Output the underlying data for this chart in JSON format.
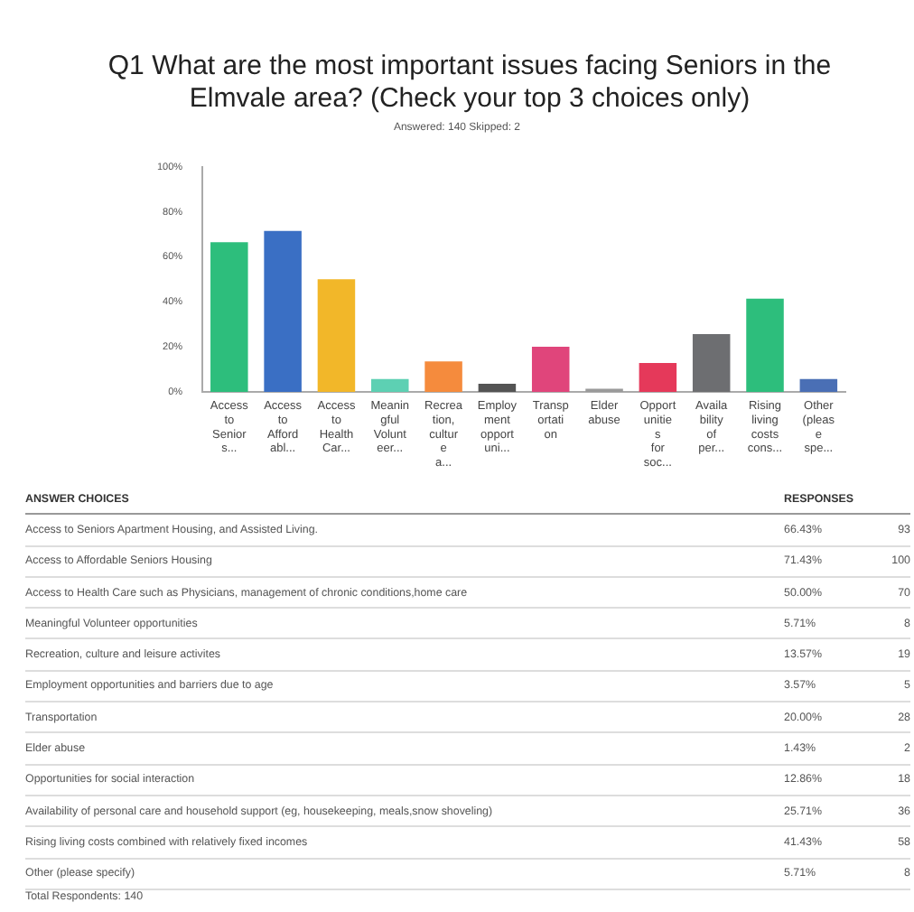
{
  "chart_data": {
    "type": "bar",
    "title": "Q1 What are the most important issues facing Seniors in the Elmvale area? (Check your top 3 choices only)",
    "subtitle": "Answered: 140    Skipped: 2",
    "categories": [
      "Access to Senior s...",
      "Access to Afford abl...",
      "Access to Health Car...",
      "Meanin gful Volunt eer...",
      "Recrea tion, cultur e a...",
      "Employ ment opport uni...",
      "Transp ortati on",
      "Elder abuse",
      "Opport unitie s for soc...",
      "Availa bility of per...",
      "Rising living costs cons...",
      "Other (pleas e spe..."
    ],
    "values": [
      66.43,
      71.43,
      50.0,
      5.71,
      13.57,
      3.57,
      20.0,
      1.43,
      12.86,
      25.71,
      41.43,
      5.71
    ],
    "colors": [
      "#2dbe7c",
      "#3a6fc4",
      "#f2b729",
      "#5dd0b3",
      "#f58b3d",
      "#545454",
      "#e0457b",
      "#9a9a9a",
      "#e5395a",
      "#6d6e71",
      "#2dbe7c",
      "#4a6fb5"
    ],
    "ylim": [
      0,
      100
    ],
    "yticks": [
      {
        "value": 0,
        "label": "0%"
      },
      {
        "value": 20,
        "label": "20%"
      },
      {
        "value": 40,
        "label": "40%"
      },
      {
        "value": 60,
        "label": "60%"
      },
      {
        "value": 80,
        "label": "80%"
      },
      {
        "value": 100,
        "label": "100%"
      }
    ],
    "grid": false,
    "annotations": [
      "ANSWER CHOICES",
      "RESPONSES",
      "Access to Seniors Apartment Housing, and Assisted Living.",
      "Access to Affordable Seniors Housing",
      "Access to Health Care such as Physicians, management of chronic conditions,home care",
      "Meaningful Volunteer opportunities",
      "Recreation, culture and leisure activites",
      "Employment opportunities and barriers due to age",
      "Transportation",
      "Elder abuse",
      "Opportunities for social interaction",
      "Availability of personal care and household support (eg, housekeeping, meals,snow shoveling)",
      "Rising living costs combined with relatively fixed incomes",
      "Other (please specify)",
      "66.43%",
      "71.43%",
      "50.00%",
      "5.71%",
      "13.57%",
      "3.57%",
      "20.00%",
      "1.43%",
      "12.86%",
      "25.71%",
      "41.43%",
      "5.71%",
      "93",
      "100",
      "70",
      "8",
      "19",
      "5",
      "28",
      "2",
      "18",
      "36",
      "58",
      "8",
      "Total Respondents: 140"
    ]
  }
}
